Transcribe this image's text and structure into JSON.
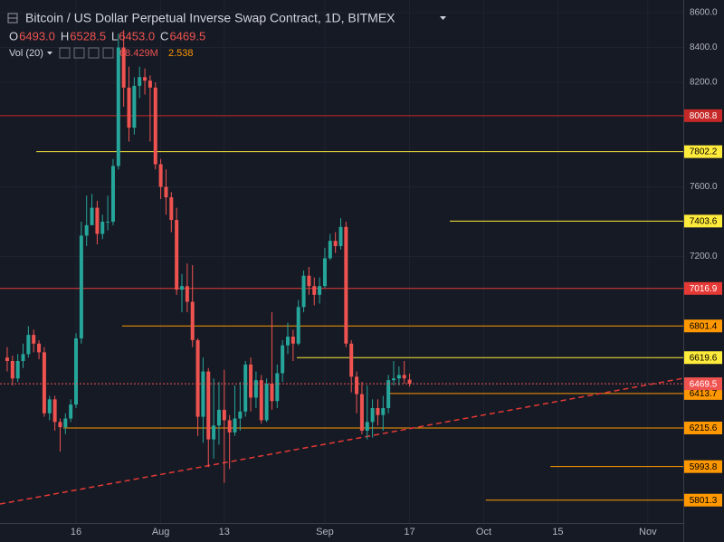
{
  "header": {
    "ohlc": [
      [
        "O",
        "6493.0"
      ],
      [
        "H",
        "6528.5"
      ],
      [
        "L",
        "6453.0"
      ],
      [
        "C",
        "6469.5"
      ]
    ],
    "vol_name": "Vol (20)",
    "vol_value": "68.429M",
    "vol_ma": "2.538"
  },
  "chart_data": {
    "type": "candlestick",
    "title": "Bitcoin / US Dollar Perpetual Inverse Swap Contract, 1D, BITMEX",
    "x": [
      2,
      3,
      4,
      5,
      6,
      7,
      8,
      9,
      10,
      11,
      12,
      13,
      14,
      15,
      16,
      17,
      18,
      19,
      20,
      21,
      22,
      23,
      24,
      25,
      26,
      27,
      28,
      29,
      30,
      31,
      32,
      33,
      34,
      35,
      36,
      37,
      38,
      39,
      40,
      41,
      42,
      43,
      44,
      45,
      46,
      47,
      48,
      49,
      50,
      51,
      52,
      53,
      54,
      55,
      56,
      57,
      58,
      59,
      60,
      61,
      62,
      63,
      64,
      65,
      66,
      67,
      68,
      69,
      70,
      71,
      72,
      73,
      74,
      75,
      76,
      77,
      78
    ],
    "open": [
      6620,
      6600,
      6500,
      6600,
      6640,
      6750,
      6700,
      6650,
      6300,
      6380,
      6250,
      6220,
      6270,
      6350,
      6730,
      7320,
      7380,
      7480,
      7330,
      7400,
      7400,
      7720,
      8400,
      8170,
      7940,
      8180,
      8230,
      8210,
      8170,
      7730,
      7600,
      7540,
      7410,
      7010,
      7030,
      6940,
      6720,
      6280,
      6540,
      6150,
      6230,
      6320,
      6260,
      6190,
      6270,
      6310,
      6580,
      6390,
      6490,
      6260,
      6470,
      6370,
      6530,
      6690,
      6740,
      6700,
      6910,
      7090,
      7030,
      6980,
      7030,
      7190,
      7290,
      7260,
      7370,
      6700,
      6510,
      6410,
      6200,
      6250,
      6330,
      6290,
      6330,
      6490,
      6500,
      6520,
      6493
    ],
    "high": [
      6680,
      6630,
      6640,
      6700,
      6800,
      6780,
      6720,
      6680,
      6400,
      6400,
      6270,
      6300,
      6380,
      6760,
      7400,
      7550,
      7560,
      7520,
      7440,
      7550,
      7760,
      8480,
      8500,
      8290,
      8230,
      8290,
      8280,
      8240,
      8200,
      7760,
      7700,
      7570,
      7480,
      7100,
      7160,
      7150,
      6730,
      6620,
      6560,
      6500,
      6480,
      6550,
      6290,
      6460,
      6480,
      6600,
      6620,
      6540,
      6520,
      6500,
      6880,
      6580,
      6720,
      6820,
      6780,
      6950,
      7120,
      7140,
      7080,
      7080,
      7250,
      7330,
      7340,
      7420,
      7400,
      6720,
      6540,
      6480,
      6460,
      6380,
      6380,
      6400,
      6520,
      6600,
      6570,
      6600,
      6528.5
    ],
    "low": [
      6540,
      6460,
      6480,
      6560,
      6620,
      6650,
      6610,
      6280,
      6260,
      6200,
      6080,
      6180,
      6250,
      6330,
      6700,
      7260,
      7380,
      7270,
      7300,
      7350,
      7380,
      7700,
      8060,
      7860,
      7900,
      8110,
      8130,
      7860,
      7700,
      7530,
      7440,
      7340,
      6980,
      6880,
      6880,
      6680,
      6170,
      6130,
      5990,
      6040,
      6120,
      5900,
      5980,
      6170,
      6200,
      6280,
      6310,
      6330,
      6240,
      6250,
      6320,
      6330,
      6480,
      6640,
      6600,
      6690,
      6880,
      6980,
      6920,
      6930,
      7020,
      7180,
      7220,
      7240,
      6680,
      6420,
      6300,
      6180,
      6150,
      6160,
      6230,
      6200,
      6300,
      6460,
      6460,
      6470,
      6453
    ],
    "close": [
      6600,
      6500,
      6600,
      6640,
      6750,
      6700,
      6650,
      6300,
      6380,
      6250,
      6220,
      6270,
      6350,
      6730,
      7320,
      7380,
      7480,
      7330,
      7400,
      7400,
      7720,
      8400,
      8170,
      7940,
      8180,
      8230,
      8210,
      8170,
      7730,
      7600,
      7540,
      7410,
      7010,
      7030,
      6940,
      6720,
      6280,
      6540,
      6150,
      6230,
      6320,
      6260,
      6190,
      6270,
      6310,
      6580,
      6390,
      6490,
      6260,
      6470,
      6370,
      6530,
      6690,
      6740,
      6700,
      6910,
      7090,
      7030,
      6980,
      7030,
      7190,
      7290,
      7260,
      7370,
      6700,
      6510,
      6410,
      6200,
      6250,
      6330,
      6290,
      6330,
      6490,
      6500,
      6520,
      6500,
      6469.5
    ],
    "up_color": "#26a69a",
    "down_color": "#ef5350",
    "xlim": [
      0.64,
      129.7
    ],
    "xticks": [
      {
        "value": 15,
        "label": "16"
      },
      {
        "value": 31,
        "label": "Aug"
      },
      {
        "value": 43,
        "label": "13"
      },
      {
        "value": 62,
        "label": "Sep"
      },
      {
        "value": 78,
        "label": "17"
      },
      {
        "value": 92,
        "label": "Oct"
      },
      {
        "value": 106,
        "label": "15"
      },
      {
        "value": 123,
        "label": "Nov"
      }
    ],
    "ylim": [
      5670,
      8673
    ],
    "yticks": [
      {
        "value": 8600,
        "label": "8600.0"
      },
      {
        "value": 8400,
        "label": "8400.0"
      },
      {
        "value": 8200,
        "label": "8200.0"
      },
      {
        "value": 7600,
        "label": "7600.0"
      },
      {
        "value": 7200,
        "label": "7200.0"
      }
    ],
    "grid": true,
    "levels": [
      {
        "value": 8008.8,
        "color": "#c62828",
        "label_color": "#ffffff"
      },
      {
        "value": 7802.2,
        "color": "#ffeb3b",
        "label_color": "#000000",
        "x_start": 7.5
      },
      {
        "value": 7403.6,
        "color": "#ffeb3b",
        "label_color": "#000000",
        "x_start": 85.6
      },
      {
        "value": 7016.9,
        "color": "#e53935",
        "label_color": "#ffffff"
      },
      {
        "value": 6801.4,
        "color": "#ff9800",
        "label_color": "#000000",
        "x_start": 23.7
      },
      {
        "value": 6619.6,
        "color": "#ffeb3b",
        "label_color": "#000000",
        "x_start": 56.7
      },
      {
        "value": 6413.7,
        "color": "#ff9800",
        "label_color": "#000000",
        "x_start": 74.1
      },
      {
        "value": 6215.6,
        "color": "#ff9800",
        "label_color": "#000000",
        "x_start": 12.6
      },
      {
        "value": 5993.8,
        "color": "#ff9800",
        "label_color": "#000000",
        "x_start": 104.6
      },
      {
        "value": 5801.3,
        "color": "#ff9800",
        "label_color": "#000000",
        "x_start": 92.4
      }
    ],
    "trend_line": {
      "x": [
        0.64,
        129.7
      ],
      "values": [
        5779,
        6501
      ],
      "color": "#e53935"
    },
    "last_price_color": "#ef5350"
  }
}
